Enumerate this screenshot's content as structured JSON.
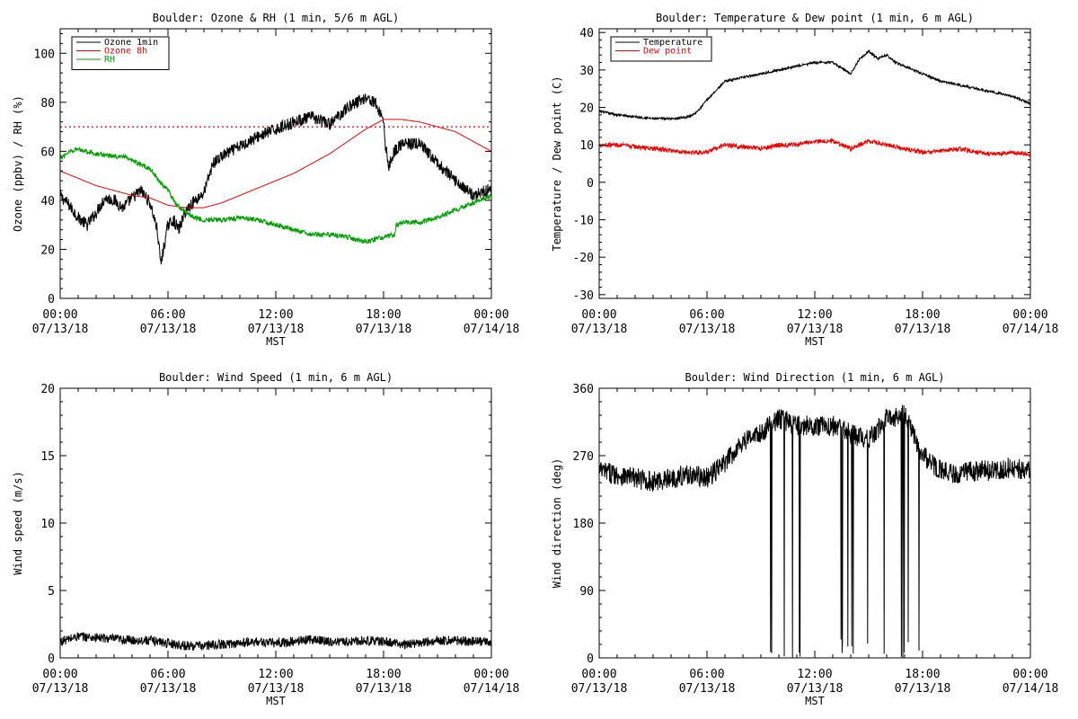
{
  "chart_data": [
    {
      "type": "line",
      "title": "Boulder: Ozone & RH (1 min, 5/6 m AGL)",
      "ylabel": "Ozone (ppbv) / RH (%)",
      "xlabel": "MST",
      "xlim": [
        0,
        24
      ],
      "ylim": [
        0,
        110
      ],
      "x_ticks": [
        {
          "time": "00:00",
          "date": "07/13/18"
        },
        {
          "time": "06:00",
          "date": "07/13/18"
        },
        {
          "time": "12:00",
          "date": "07/13/18"
        },
        {
          "time": "18:00",
          "date": "07/13/18"
        },
        {
          "time": "00:00",
          "date": "07/14/18"
        }
      ],
      "y_ticks": [
        "0",
        "20",
        "40",
        "60",
        "80",
        "100"
      ],
      "legend": {
        "position": "top-left"
      },
      "reference_line": {
        "value": 70,
        "style": "dotted",
        "color": "#ee0000"
      },
      "series": [
        {
          "name": "Ozone 1min",
          "color": "#000000",
          "noise": 2.5,
          "x": [
            0,
            0.5,
            1,
            1.5,
            2,
            2.5,
            3,
            3.5,
            4,
            4.5,
            5,
            5.4,
            5.6,
            5.8,
            6,
            6.3,
            6.6,
            7,
            7.5,
            8,
            8.5,
            9,
            10,
            11,
            12,
            13,
            14,
            15,
            16,
            16.5,
            17,
            17.5,
            18,
            18.1,
            18.3,
            18.6,
            19,
            20,
            21,
            22,
            23,
            23.7,
            24
          ],
          "y": [
            42,
            38,
            33,
            30,
            35,
            41,
            40,
            37,
            41,
            44,
            39,
            28,
            14,
            22,
            30,
            32,
            28,
            36,
            40,
            43,
            55,
            58,
            62,
            66,
            69,
            72,
            74,
            71,
            78,
            80,
            82,
            80,
            73,
            62,
            54,
            60,
            63,
            63,
            55,
            48,
            42,
            44,
            45
          ]
        },
        {
          "name": "Ozone 8h",
          "color": "#ee0000",
          "noise": 0,
          "x": [
            0,
            1,
            2,
            3,
            4,
            5,
            6,
            7,
            8,
            9,
            10,
            11,
            12,
            13,
            14,
            15,
            16,
            17,
            17.5,
            18,
            18.5,
            19,
            20,
            21,
            22,
            23,
            24
          ],
          "y": [
            52,
            49,
            46,
            44,
            42,
            41,
            38,
            37,
            37,
            39,
            42,
            45,
            48,
            51,
            55,
            59,
            64,
            69,
            71,
            73,
            73,
            73,
            72,
            70,
            68,
            64,
            60
          ]
        },
        {
          "name": "RH",
          "color": "#00a000",
          "noise": 1.0,
          "x": [
            0,
            0.5,
            1,
            1.5,
            2,
            3,
            3.5,
            4,
            5,
            5.5,
            6,
            6.5,
            7,
            7.5,
            8,
            9,
            10,
            11,
            12,
            13,
            14,
            15,
            16,
            17,
            18,
            18.6,
            18.7,
            19,
            20,
            21,
            22,
            23,
            24
          ],
          "y": [
            57,
            60,
            61,
            60,
            59,
            58,
            58,
            56,
            53,
            48,
            44,
            38,
            35,
            33,
            32,
            32,
            33,
            32,
            30,
            28,
            26,
            26,
            25,
            23,
            25,
            26,
            30,
            31,
            31,
            33,
            36,
            39,
            42
          ]
        }
      ]
    },
    {
      "type": "line",
      "title": "Boulder: Temperature & Dew point (1 min, 6 m AGL)",
      "ylabel": "Temperature / Dew point (C)",
      "xlabel": "MST",
      "xlim": [
        0,
        24
      ],
      "ylim": [
        -31,
        41
      ],
      "x_ticks": [
        {
          "time": "00:00",
          "date": "07/13/18"
        },
        {
          "time": "06:00",
          "date": "07/13/18"
        },
        {
          "time": "12:00",
          "date": "07/13/18"
        },
        {
          "time": "18:00",
          "date": "07/13/18"
        },
        {
          "time": "00:00",
          "date": "07/14/18"
        }
      ],
      "y_ticks": [
        "-30",
        "-20",
        "-10",
        "0",
        "10",
        "20",
        "30",
        "40"
      ],
      "legend": {
        "position": "top-left"
      },
      "series": [
        {
          "name": "Temperature",
          "color": "#000000",
          "noise": 0.3,
          "x": [
            0,
            1,
            2,
            3,
            4,
            5,
            5.5,
            6,
            7,
            8,
            9,
            10,
            11,
            12,
            13,
            14,
            14.5,
            15,
            15.5,
            16,
            16.5,
            17,
            18,
            19,
            20,
            21,
            22,
            23,
            24
          ],
          "y": [
            19,
            18,
            17.5,
            17,
            17,
            17.5,
            19,
            22,
            27,
            28,
            29,
            30,
            31,
            32,
            32,
            29,
            33,
            35,
            33,
            34,
            32,
            31,
            29,
            27,
            26,
            25,
            24,
            23,
            21
          ]
        },
        {
          "name": "Dew point",
          "color": "#ee0000",
          "noise": 0.6,
          "x": [
            0,
            1,
            2,
            3,
            4,
            5,
            6,
            7,
            8,
            9,
            10,
            11,
            12,
            13,
            14,
            15,
            16,
            17,
            18,
            19,
            20,
            21,
            22,
            23,
            24
          ],
          "y": [
            10,
            10,
            9.5,
            9,
            8.5,
            8,
            8,
            10,
            9.5,
            9,
            10,
            10,
            11,
            11,
            9,
            11,
            10,
            9,
            8,
            8.5,
            9,
            8,
            7.5,
            8,
            7.5
          ]
        }
      ]
    },
    {
      "type": "line",
      "title": "Boulder: Wind Speed (1 min, 6 m AGL)",
      "ylabel": "Wind speed (m/s)",
      "xlabel": "MST",
      "xlim": [
        0,
        24
      ],
      "ylim": [
        0,
        20
      ],
      "x_ticks": [
        {
          "time": "00:00",
          "date": "07/13/18"
        },
        {
          "time": "06:00",
          "date": "07/13/18"
        },
        {
          "time": "12:00",
          "date": "07/13/18"
        },
        {
          "time": "18:00",
          "date": "07/13/18"
        },
        {
          "time": "00:00",
          "date": "07/14/18"
        }
      ],
      "y_ticks": [
        "0",
        "5",
        "10",
        "15",
        "20"
      ],
      "series": [
        {
          "name": "",
          "color": "#000000",
          "noise": 0.35,
          "x": [
            0,
            1,
            2,
            3,
            4,
            5,
            6,
            7,
            8,
            9,
            10,
            11,
            12,
            13,
            14,
            15,
            16,
            17,
            18,
            19,
            20,
            21,
            22,
            23,
            24
          ],
          "y": [
            1.2,
            1.6,
            1.5,
            1.4,
            1.3,
            1.3,
            1.1,
            0.9,
            0.9,
            1.0,
            1.1,
            1.2,
            1.1,
            1.2,
            1.4,
            1.2,
            1.2,
            1.3,
            1.2,
            1.0,
            1.1,
            1.3,
            1.3,
            1.2,
            1.2
          ]
        }
      ]
    },
    {
      "type": "line",
      "title": "Boulder: Wind Direction (1 min, 6 m AGL)",
      "ylabel": "Wind direction (deg)",
      "xlabel": "MST",
      "xlim": [
        0,
        24
      ],
      "ylim": [
        0,
        360
      ],
      "x_ticks": [
        {
          "time": "00:00",
          "date": "07/13/18"
        },
        {
          "time": "06:00",
          "date": "07/13/18"
        },
        {
          "time": "12:00",
          "date": "07/13/18"
        },
        {
          "time": "18:00",
          "date": "07/13/18"
        },
        {
          "time": "00:00",
          "date": "07/14/18"
        }
      ],
      "y_ticks": [
        "0",
        "90",
        "180",
        "270",
        "360"
      ],
      "series": [
        {
          "name": "",
          "color": "#000000",
          "noise": 14,
          "wrap_start": 8.8,
          "wrap_end": 18.0,
          "x": [
            0,
            1,
            2,
            3,
            4,
            5,
            6,
            7,
            8,
            9,
            10,
            11,
            12,
            13,
            14,
            15,
            16,
            17,
            18,
            19,
            20,
            21,
            22,
            23,
            24
          ],
          "y": [
            250,
            245,
            240,
            235,
            240,
            245,
            240,
            260,
            290,
            300,
            320,
            310,
            310,
            310,
            300,
            290,
            320,
            325,
            270,
            250,
            245,
            250,
            250,
            255,
            250
          ]
        }
      ]
    }
  ]
}
